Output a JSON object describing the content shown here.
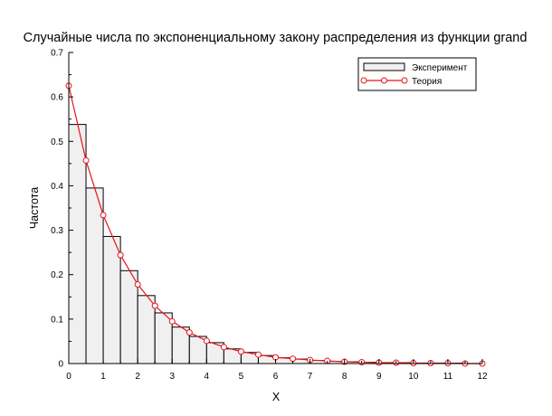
{
  "chart_data": {
    "type": "bar",
    "title": "Случайные числа по экспоненциальному закону распределения из функции grand",
    "xlabel": "X",
    "ylabel": "Частота",
    "xlim": [
      0,
      12
    ],
    "ylim": [
      0,
      0.7
    ],
    "x_ticks": [
      "0",
      "1",
      "2",
      "3",
      "4",
      "5",
      "6",
      "7",
      "8",
      "9",
      "10",
      "11",
      "12"
    ],
    "y_ticks": [
      "0",
      "0.1",
      "0.2",
      "0.3",
      "0.4",
      "0.5",
      "0.6",
      "0.7"
    ],
    "legend_position": "top-right",
    "colors": {
      "bar_fill": "#f0f0f0",
      "bar_stroke": "#000000",
      "line": "#e8141c",
      "marker_fill": "#ffffff"
    },
    "series": [
      {
        "name": "Эксперимент",
        "kind": "histogram",
        "bin_width": 0.5,
        "bin_starts": [
          0,
          0.5,
          1,
          1.5,
          2,
          2.5,
          3,
          3.5,
          4,
          4.5,
          5,
          5.5,
          6,
          6.5,
          7,
          7.5,
          8,
          8.5,
          9,
          9.5,
          10,
          10.5,
          11,
          11.5
        ],
        "values": [
          0.538,
          0.395,
          0.286,
          0.209,
          0.153,
          0.114,
          0.082,
          0.061,
          0.047,
          0.033,
          0.025,
          0.018,
          0.013,
          0.01,
          0.007,
          0.005,
          0.004,
          0.003,
          0.002,
          0.002,
          0.001,
          0.001,
          0.001,
          0.0
        ]
      },
      {
        "name": "Теория",
        "kind": "line",
        "x": [
          0,
          0.5,
          1,
          1.5,
          2,
          2.5,
          3,
          3.5,
          4,
          4.5,
          5,
          5.5,
          6,
          6.5,
          7,
          7.5,
          8,
          8.5,
          9,
          9.5,
          10,
          10.5,
          11,
          11.5,
          12
        ],
        "values": [
          0.625,
          0.457,
          0.334,
          0.244,
          0.178,
          0.13,
          0.095,
          0.07,
          0.051,
          0.037,
          0.027,
          0.02,
          0.014,
          0.011,
          0.008,
          0.006,
          0.004,
          0.003,
          0.002,
          0.002,
          0.001,
          0.001,
          0.001,
          0.0,
          0.0
        ]
      }
    ]
  }
}
